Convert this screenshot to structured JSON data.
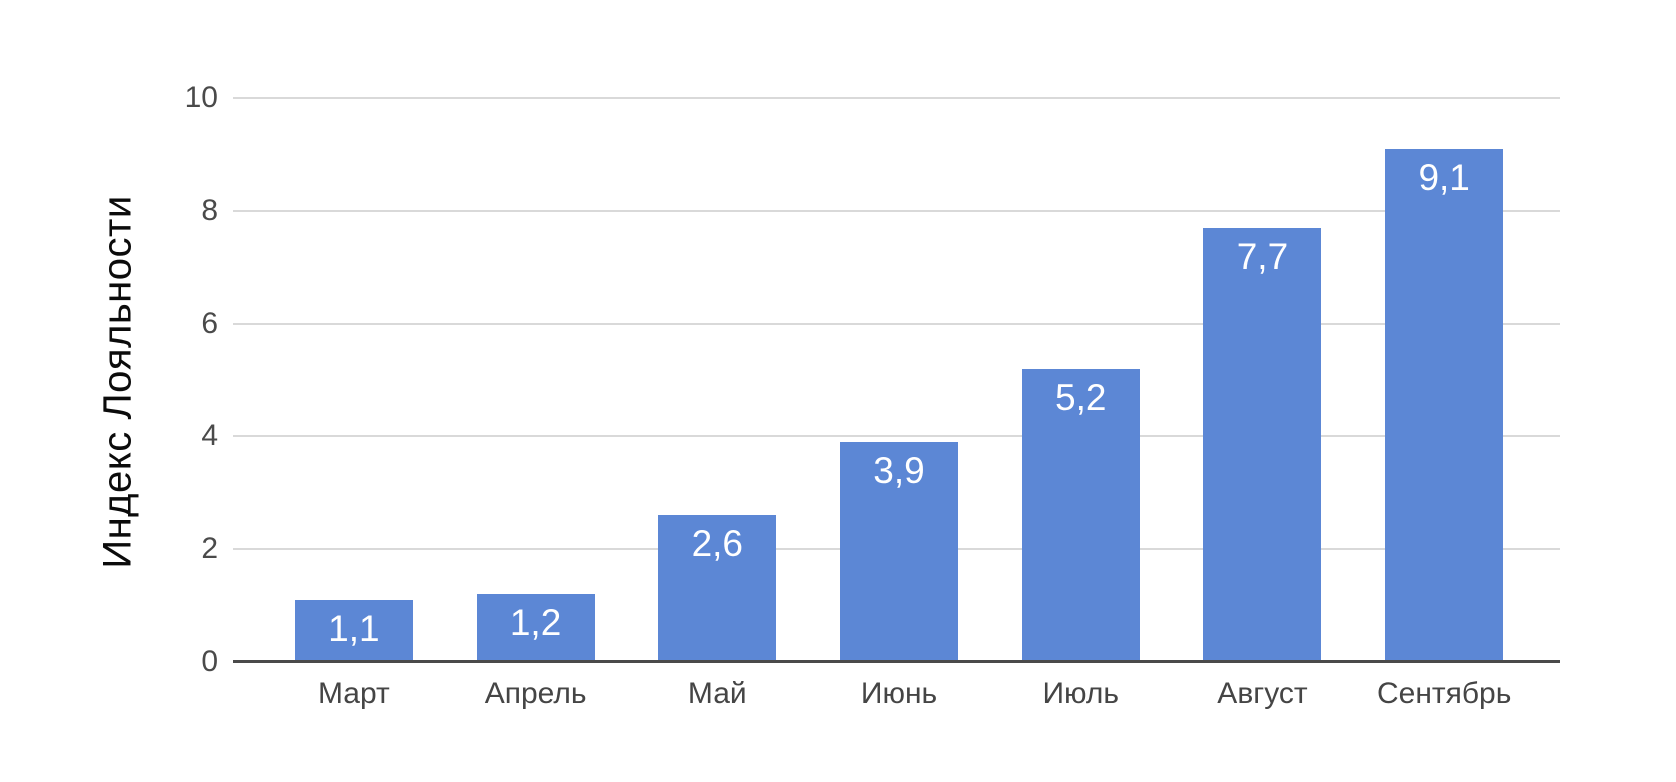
{
  "chart_data": {
    "type": "bar",
    "title": "",
    "categories": [
      "Март",
      "Апрель",
      "Май",
      "Июнь",
      "Июль",
      "Август",
      "Сентябрь"
    ],
    "values": [
      1.1,
      1.2,
      2.6,
      3.9,
      5.2,
      7.7,
      9.1
    ],
    "value_labels": [
      "1,1",
      "1,2",
      "2,6",
      "3,9",
      "5,2",
      "7,7",
      "9,1"
    ],
    "ylabel": "Индекс Лояльности",
    "xlabel": "",
    "ylim": [
      0,
      10
    ],
    "yticks": [
      0,
      2,
      4,
      6,
      8,
      10
    ],
    "grid": true,
    "legend_position": "none",
    "colors": {
      "bar": "#5C87D5",
      "value_label": "#ffffff",
      "gridline": "#d9d9d9",
      "axis_line": "#4a4a4a",
      "tick_label": "#4a4a4a",
      "category_label": "#454545",
      "y_title": "#0b0b0b",
      "background": "#ffffff"
    }
  }
}
